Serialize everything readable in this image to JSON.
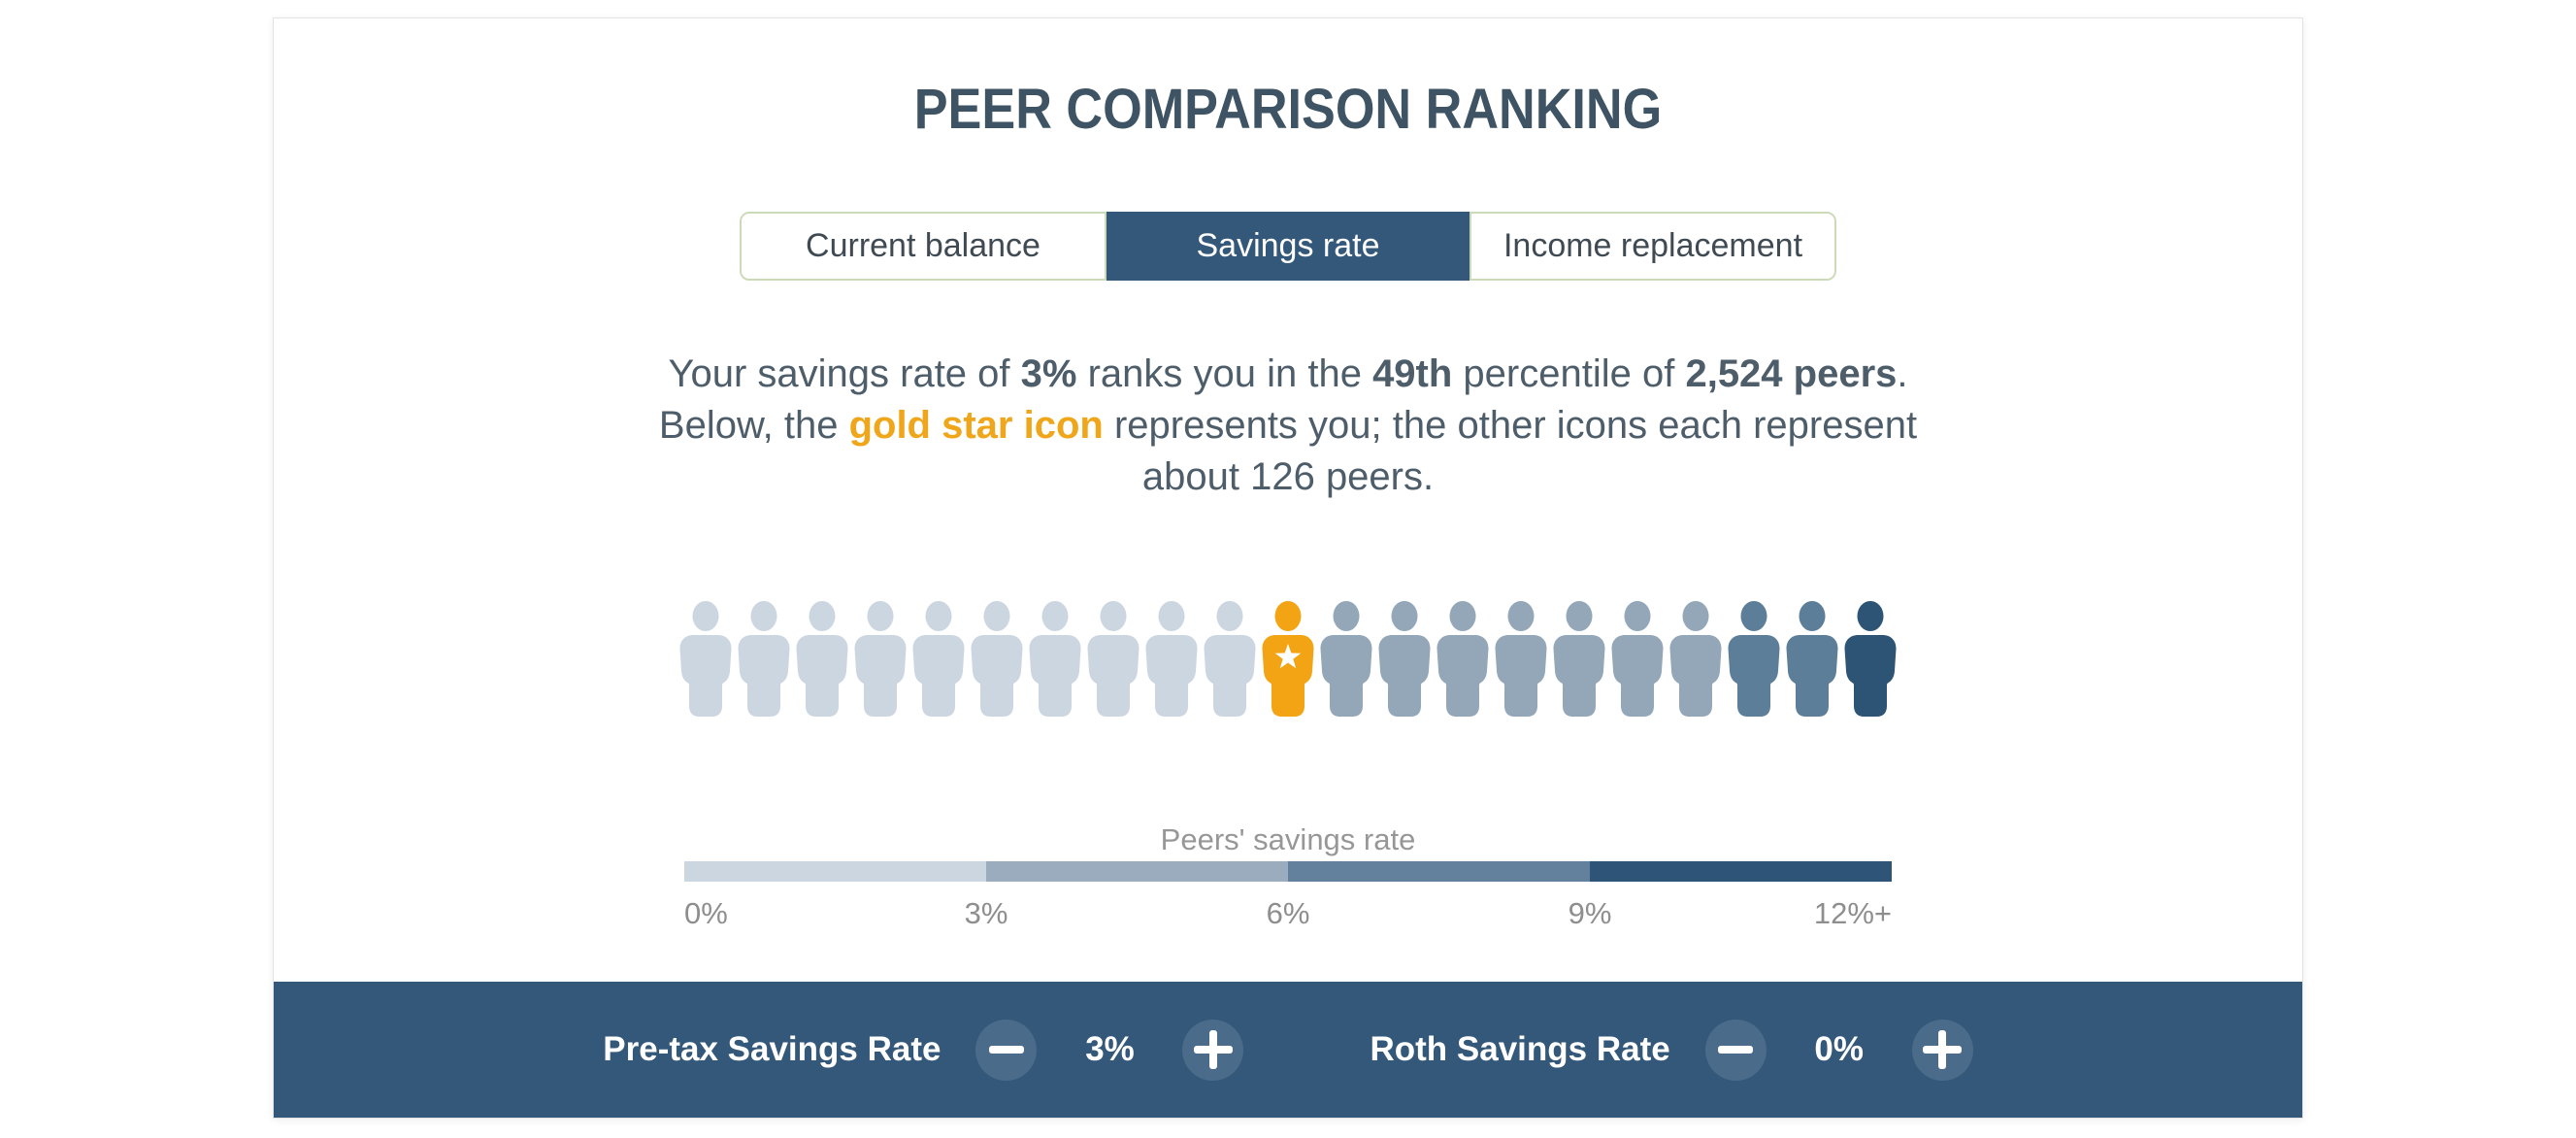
{
  "title": "PEER COMPARISON RANKING",
  "tabs": [
    {
      "label": "Current balance",
      "active": false
    },
    {
      "label": "Savings rate",
      "active": true
    },
    {
      "label": "Income replacement",
      "active": false
    }
  ],
  "description": {
    "segments": [
      {
        "text": "Your savings rate of "
      },
      {
        "text": "3%",
        "bold": true
      },
      {
        "text": " ranks you in the "
      },
      {
        "text": "49th",
        "bold": true
      },
      {
        "text": " percentile of "
      },
      {
        "text": "2,524 peers",
        "bold": true
      },
      {
        "text": "."
      },
      {
        "break": true
      },
      {
        "text": "Below, the "
      },
      {
        "text": "gold star icon",
        "bold": true,
        "gold": true
      },
      {
        "text": " represents you; the other icons each represent"
      },
      {
        "break": true
      },
      {
        "text": "about 126 peers."
      }
    ]
  },
  "peer_icons": {
    "total": 21,
    "user_index": 10,
    "peers_per_icon": 126,
    "sequence": [
      "light",
      "light",
      "light",
      "light",
      "light",
      "light",
      "light",
      "light",
      "light",
      "light",
      "gold",
      "mid",
      "mid",
      "mid",
      "mid",
      "mid",
      "mid",
      "mid",
      "slate",
      "slate",
      "navy"
    ],
    "palette": {
      "light": "#ccd6e0",
      "mid": "#93a7b8",
      "slate": "#5d7e99",
      "navy": "#2d5475",
      "gold": "#f2a414"
    }
  },
  "scale": {
    "title": "Peers' savings rate",
    "segment_colors": [
      "#ccd6e0",
      "#9aacbd",
      "#63809d",
      "#2e5578"
    ],
    "tick_labels": [
      "0%",
      "3%",
      "6%",
      "9%",
      "12%+"
    ]
  },
  "footer": {
    "background": "#34587a",
    "button_color": "#4a6b8a",
    "controls": [
      {
        "label": "Pre-tax Savings Rate",
        "value": "3%"
      },
      {
        "label": "Roth Savings Rate",
        "value": "0%"
      }
    ]
  },
  "colors": {
    "accent_dark_blue": "#335879",
    "gold": "#f0a61a",
    "title_text": "#3e5363",
    "body_text": "#4d5d6a",
    "muted_text": "#8e8e8e",
    "tab_border_green": "#ccdab8"
  }
}
